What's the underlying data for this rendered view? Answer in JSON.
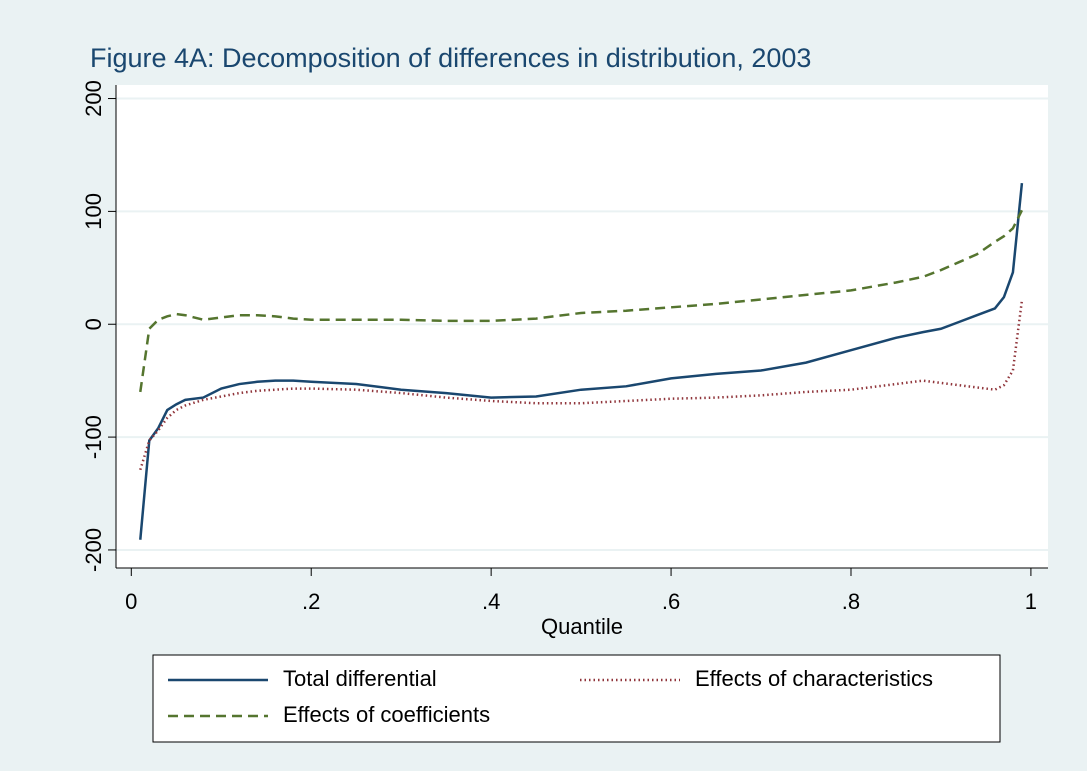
{
  "chart_data": {
    "type": "line",
    "title": "Figure 4A: Decomposition of differences in distribution, 2003",
    "x_label": "Quantile",
    "x": [
      0.01,
      0.02,
      0.03,
      0.04,
      0.05,
      0.06,
      0.08,
      0.1,
      0.12,
      0.14,
      0.16,
      0.18,
      0.2,
      0.25,
      0.3,
      0.35,
      0.4,
      0.45,
      0.5,
      0.55,
      0.6,
      0.65,
      0.7,
      0.75,
      0.8,
      0.85,
      0.88,
      0.9,
      0.92,
      0.94,
      0.96,
      0.97,
      0.98,
      0.99
    ],
    "series": [
      {
        "name": "Total differential",
        "color": "#1a476f",
        "dash": "solid",
        "values": [
          -191,
          -103,
          -92,
          -76,
          -71,
          -67,
          -65,
          -57,
          -53,
          -51,
          -50,
          -50,
          -51,
          -53,
          -58,
          -61,
          -65,
          -64,
          -58,
          -55,
          -48,
          -44,
          -41,
          -34,
          -23,
          -12,
          -7,
          -4,
          2,
          8,
          14,
          24,
          46,
          125
        ]
      },
      {
        "name": "Effects of characteristics",
        "color": "#90353b",
        "dash": "dot",
        "values": [
          -129,
          -103,
          -94,
          -83,
          -76,
          -72,
          -67,
          -64,
          -61,
          -59,
          -58,
          -57,
          -57,
          -58,
          -61,
          -65,
          -68,
          -70,
          -70,
          -68,
          -66,
          -65,
          -63,
          -60,
          -58,
          -53,
          -50,
          -52,
          -54,
          -56,
          -58,
          -54,
          -41,
          21
        ]
      },
      {
        "name": "Effects of coefficients",
        "color": "#55752f",
        "dash": "dash",
        "values": [
          -60,
          -4,
          4,
          7,
          9,
          8,
          4,
          6,
          8,
          8,
          7,
          5,
          4,
          4,
          4,
          3,
          3,
          5,
          10,
          12,
          15,
          18,
          22,
          26,
          30,
          37,
          42,
          48,
          55,
          62,
          73,
          78,
          85,
          101
        ]
      }
    ],
    "xlim": [
      -0.017,
      1.019
    ],
    "ylim": [
      -216,
      212
    ],
    "xticks": [
      0,
      {
        "value": 0.2,
        "label": ".2"
      },
      {
        "value": 0.4,
        "label": ".4"
      },
      {
        "value": 0.6,
        "label": ".6"
      },
      {
        "value": 0.8,
        "label": ".8"
      },
      1
    ],
    "yticks": [
      -200,
      -100,
      0,
      100,
      200
    ],
    "grid": true
  }
}
